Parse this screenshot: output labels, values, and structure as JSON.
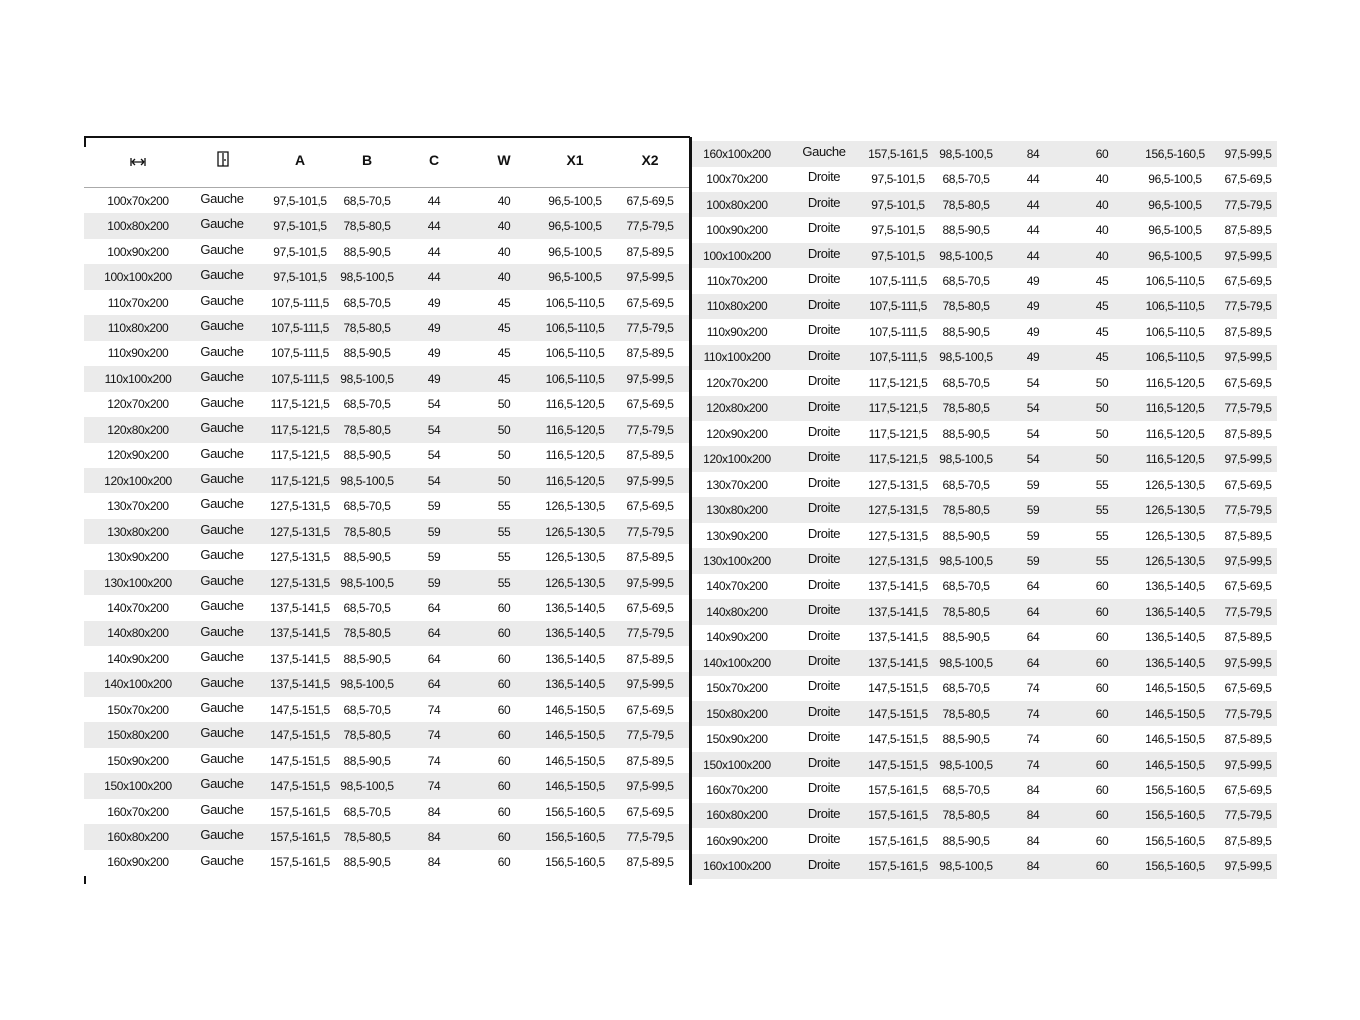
{
  "header": {
    "icon_width": "width-arrows-icon",
    "icon_door": "door-icon",
    "columns": [
      "A",
      "B",
      "C",
      "W",
      "X1",
      "X2"
    ]
  },
  "left_rows": [
    [
      "100x70x200",
      "Gauche",
      "97,5-101,5",
      "68,5-70,5",
      "44",
      "40",
      "96,5-100,5",
      "67,5-69,5"
    ],
    [
      "100x80x200",
      "Gauche",
      "97,5-101,5",
      "78,5-80,5",
      "44",
      "40",
      "96,5-100,5",
      "77,5-79,5"
    ],
    [
      "100x90x200",
      "Gauche",
      "97,5-101,5",
      "88,5-90,5",
      "44",
      "40",
      "96,5-100,5",
      "87,5-89,5"
    ],
    [
      "100x100x200",
      "Gauche",
      "97,5-101,5",
      "98,5-100,5",
      "44",
      "40",
      "96,5-100,5",
      "97,5-99,5"
    ],
    [
      "110x70x200",
      "Gauche",
      "107,5-111,5",
      "68,5-70,5",
      "49",
      "45",
      "106,5-110,5",
      "67,5-69,5"
    ],
    [
      "110x80x200",
      "Gauche",
      "107,5-111,5",
      "78,5-80,5",
      "49",
      "45",
      "106,5-110,5",
      "77,5-79,5"
    ],
    [
      "110x90x200",
      "Gauche",
      "107,5-111,5",
      "88,5-90,5",
      "49",
      "45",
      "106,5-110,5",
      "87,5-89,5"
    ],
    [
      "110x100x200",
      "Gauche",
      "107,5-111,5",
      "98,5-100,5",
      "49",
      "45",
      "106,5-110,5",
      "97,5-99,5"
    ],
    [
      "120x70x200",
      "Gauche",
      "117,5-121,5",
      "68,5-70,5",
      "54",
      "50",
      "116,5-120,5",
      "67,5-69,5"
    ],
    [
      "120x80x200",
      "Gauche",
      "117,5-121,5",
      "78,5-80,5",
      "54",
      "50",
      "116,5-120,5",
      "77,5-79,5"
    ],
    [
      "120x90x200",
      "Gauche",
      "117,5-121,5",
      "88,5-90,5",
      "54",
      "50",
      "116,5-120,5",
      "87,5-89,5"
    ],
    [
      "120x100x200",
      "Gauche",
      "117,5-121,5",
      "98,5-100,5",
      "54",
      "50",
      "116,5-120,5",
      "97,5-99,5"
    ],
    [
      "130x70x200",
      "Gauche",
      "127,5-131,5",
      "68,5-70,5",
      "59",
      "55",
      "126,5-130,5",
      "67,5-69,5"
    ],
    [
      "130x80x200",
      "Gauche",
      "127,5-131,5",
      "78,5-80,5",
      "59",
      "55",
      "126,5-130,5",
      "77,5-79,5"
    ],
    [
      "130x90x200",
      "Gauche",
      "127,5-131,5",
      "88,5-90,5",
      "59",
      "55",
      "126,5-130,5",
      "87,5-89,5"
    ],
    [
      "130x100x200",
      "Gauche",
      "127,5-131,5",
      "98,5-100,5",
      "59",
      "55",
      "126,5-130,5",
      "97,5-99,5"
    ],
    [
      "140x70x200",
      "Gauche",
      "137,5-141,5",
      "68,5-70,5",
      "64",
      "60",
      "136,5-140,5",
      "67,5-69,5"
    ],
    [
      "140x80x200",
      "Gauche",
      "137,5-141,5",
      "78,5-80,5",
      "64",
      "60",
      "136,5-140,5",
      "77,5-79,5"
    ],
    [
      "140x90x200",
      "Gauche",
      "137,5-141,5",
      "88,5-90,5",
      "64",
      "60",
      "136,5-140,5",
      "87,5-89,5"
    ],
    [
      "140x100x200",
      "Gauche",
      "137,5-141,5",
      "98,5-100,5",
      "64",
      "60",
      "136,5-140,5",
      "97,5-99,5"
    ],
    [
      "150x70x200",
      "Gauche",
      "147,5-151,5",
      "68,5-70,5",
      "74",
      "60",
      "146,5-150,5",
      "67,5-69,5"
    ],
    [
      "150x80x200",
      "Gauche",
      "147,5-151,5",
      "78,5-80,5",
      "74",
      "60",
      "146,5-150,5",
      "77,5-79,5"
    ],
    [
      "150x90x200",
      "Gauche",
      "147,5-151,5",
      "88,5-90,5",
      "74",
      "60",
      "146,5-150,5",
      "87,5-89,5"
    ],
    [
      "150x100x200",
      "Gauche",
      "147,5-151,5",
      "98,5-100,5",
      "74",
      "60",
      "146,5-150,5",
      "97,5-99,5"
    ],
    [
      "160x70x200",
      "Gauche",
      "157,5-161,5",
      "68,5-70,5",
      "84",
      "60",
      "156,5-160,5",
      "67,5-69,5"
    ],
    [
      "160x80x200",
      "Gauche",
      "157,5-161,5",
      "78,5-80,5",
      "84",
      "60",
      "156,5-160,5",
      "77,5-79,5"
    ],
    [
      "160x90x200",
      "Gauche",
      "157,5-161,5",
      "88,5-90,5",
      "84",
      "60",
      "156,5-160,5",
      "87,5-89,5"
    ]
  ],
  "right_rows": [
    [
      "160x100x200",
      "Gauche",
      "157,5-161,5",
      "98,5-100,5",
      "84",
      "60",
      "156,5-160,5",
      "97,5-99,5"
    ],
    [
      "100x70x200",
      "Droite",
      "97,5-101,5",
      "68,5-70,5",
      "44",
      "40",
      "96,5-100,5",
      "67,5-69,5"
    ],
    [
      "100x80x200",
      "Droite",
      "97,5-101,5",
      "78,5-80,5",
      "44",
      "40",
      "96,5-100,5",
      "77,5-79,5"
    ],
    [
      "100x90x200",
      "Droite",
      "97,5-101,5",
      "88,5-90,5",
      "44",
      "40",
      "96,5-100,5",
      "87,5-89,5"
    ],
    [
      "100x100x200",
      "Droite",
      "97,5-101,5",
      "98,5-100,5",
      "44",
      "40",
      "96,5-100,5",
      "97,5-99,5"
    ],
    [
      "110x70x200",
      "Droite",
      "107,5-111,5",
      "68,5-70,5",
      "49",
      "45",
      "106,5-110,5",
      "67,5-69,5"
    ],
    [
      "110x80x200",
      "Droite",
      "107,5-111,5",
      "78,5-80,5",
      "49",
      "45",
      "106,5-110,5",
      "77,5-79,5"
    ],
    [
      "110x90x200",
      "Droite",
      "107,5-111,5",
      "88,5-90,5",
      "49",
      "45",
      "106,5-110,5",
      "87,5-89,5"
    ],
    [
      "110x100x200",
      "Droite",
      "107,5-111,5",
      "98,5-100,5",
      "49",
      "45",
      "106,5-110,5",
      "97,5-99,5"
    ],
    [
      "120x70x200",
      "Droite",
      "117,5-121,5",
      "68,5-70,5",
      "54",
      "50",
      "116,5-120,5",
      "67,5-69,5"
    ],
    [
      "120x80x200",
      "Droite",
      "117,5-121,5",
      "78,5-80,5",
      "54",
      "50",
      "116,5-120,5",
      "77,5-79,5"
    ],
    [
      "120x90x200",
      "Droite",
      "117,5-121,5",
      "88,5-90,5",
      "54",
      "50",
      "116,5-120,5",
      "87,5-89,5"
    ],
    [
      "120x100x200",
      "Droite",
      "117,5-121,5",
      "98,5-100,5",
      "54",
      "50",
      "116,5-120,5",
      "97,5-99,5"
    ],
    [
      "130x70x200",
      "Droite",
      "127,5-131,5",
      "68,5-70,5",
      "59",
      "55",
      "126,5-130,5",
      "67,5-69,5"
    ],
    [
      "130x80x200",
      "Droite",
      "127,5-131,5",
      "78,5-80,5",
      "59",
      "55",
      "126,5-130,5",
      "77,5-79,5"
    ],
    [
      "130x90x200",
      "Droite",
      "127,5-131,5",
      "88,5-90,5",
      "59",
      "55",
      "126,5-130,5",
      "87,5-89,5"
    ],
    [
      "130x100x200",
      "Droite",
      "127,5-131,5",
      "98,5-100,5",
      "59",
      "55",
      "126,5-130,5",
      "97,5-99,5"
    ],
    [
      "140x70x200",
      "Droite",
      "137,5-141,5",
      "68,5-70,5",
      "64",
      "60",
      "136,5-140,5",
      "67,5-69,5"
    ],
    [
      "140x80x200",
      "Droite",
      "137,5-141,5",
      "78,5-80,5",
      "64",
      "60",
      "136,5-140,5",
      "77,5-79,5"
    ],
    [
      "140x90x200",
      "Droite",
      "137,5-141,5",
      "88,5-90,5",
      "64",
      "60",
      "136,5-140,5",
      "87,5-89,5"
    ],
    [
      "140x100x200",
      "Droite",
      "137,5-141,5",
      "98,5-100,5",
      "64",
      "60",
      "136,5-140,5",
      "97,5-99,5"
    ],
    [
      "150x70x200",
      "Droite",
      "147,5-151,5",
      "68,5-70,5",
      "74",
      "60",
      "146,5-150,5",
      "67,5-69,5"
    ],
    [
      "150x80x200",
      "Droite",
      "147,5-151,5",
      "78,5-80,5",
      "74",
      "60",
      "146,5-150,5",
      "77,5-79,5"
    ],
    [
      "150x90x200",
      "Droite",
      "147,5-151,5",
      "88,5-90,5",
      "74",
      "60",
      "146,5-150,5",
      "87,5-89,5"
    ],
    [
      "150x100x200",
      "Droite",
      "147,5-151,5",
      "98,5-100,5",
      "74",
      "60",
      "146,5-150,5",
      "97,5-99,5"
    ],
    [
      "160x70x200",
      "Droite",
      "157,5-161,5",
      "68,5-70,5",
      "84",
      "60",
      "156,5-160,5",
      "67,5-69,5"
    ],
    [
      "160x80x200",
      "Droite",
      "157,5-161,5",
      "78,5-80,5",
      "84",
      "60",
      "156,5-160,5",
      "77,5-79,5"
    ],
    [
      "160x90x200",
      "Droite",
      "157,5-161,5",
      "88,5-90,5",
      "84",
      "60",
      "156,5-160,5",
      "87,5-89,5"
    ],
    [
      "160x100x200",
      "Droite",
      "157,5-161,5",
      "98,5-100,5",
      "84",
      "60",
      "156,5-160,5",
      "97,5-99,5"
    ]
  ]
}
